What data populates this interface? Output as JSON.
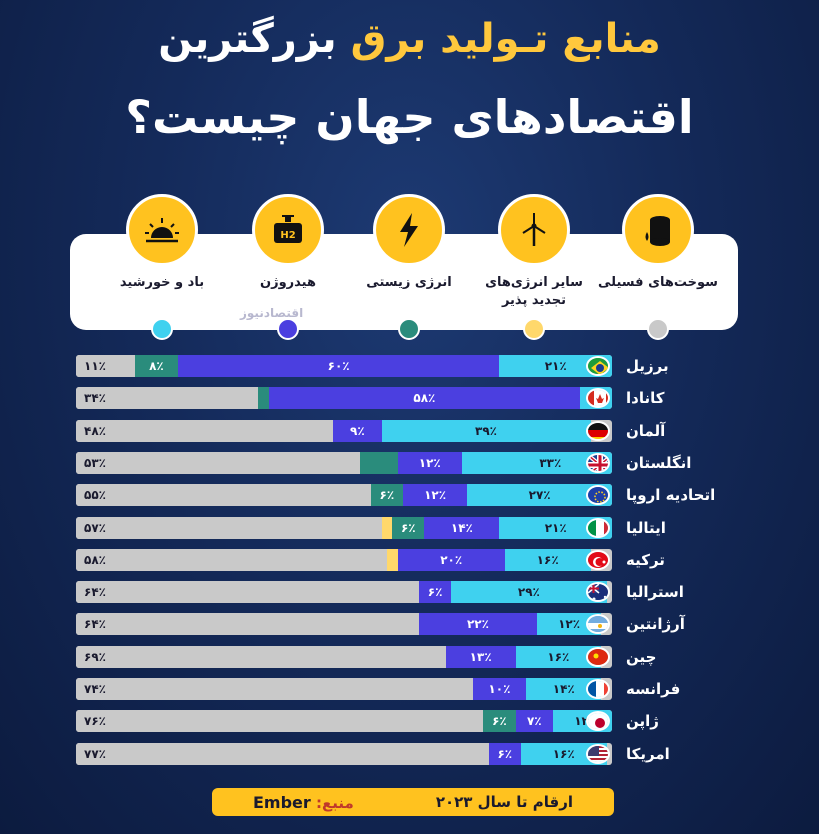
{
  "header": {
    "title_line1_a": "منابع تـولید برق",
    "title_line1_b": "بزرگترین",
    "title_line2": "اقتصادهای جهان چیست؟"
  },
  "legend": [
    {
      "label": "سوخت‌های فسیلی",
      "icon": "oil-barrel-icon",
      "color": "#c9c9c9"
    },
    {
      "label": "سایر انرژی‌های تجدید پذیر",
      "icon": "wind-turbine-icon",
      "color": "#ffd86b"
    },
    {
      "label": "انرژی زیستی",
      "icon": "lightning-icon",
      "color": "#2a8c7c"
    },
    {
      "label": "هیدروژن",
      "icon": "hydrogen-tank-icon",
      "color": "#4b3fe0"
    },
    {
      "label": "باد و خورشید",
      "icon": "sun-icon",
      "color": "#3fd1ef"
    }
  ],
  "watermark": "اقتصادنیوز",
  "chart_data": {
    "type": "bar",
    "orientation": "horizontal-stacked",
    "unit": "%",
    "categories": [
      "برزیل",
      "کانادا",
      "آلمان",
      "انگلستان",
      "اتحادیه اروپا",
      "ایتالیا",
      "ترکیه",
      "استرالیا",
      "آرژانتین",
      "چین",
      "فرانسه",
      "ژاپن",
      "امریکا"
    ],
    "flags": [
      "brazil",
      "canada",
      "germany",
      "uk",
      "eu",
      "italy",
      "turkey",
      "australia",
      "argentina",
      "china",
      "france",
      "japan",
      "usa"
    ],
    "series": [
      {
        "name": "سوخت‌های فسیلی",
        "color": "#c9c9c9",
        "values": [
          11,
          34,
          48,
          53,
          55,
          57,
          58,
          64,
          64,
          69,
          74,
          76,
          77
        ],
        "labels": [
          "۱۱٪",
          "۳۴٪",
          "۴۸٪",
          "۵۳٪",
          "۵۵٪",
          "۵۷٪",
          "۵۸٪",
          "۶۴٪",
          "۶۴٪",
          "۶۹٪",
          "۷۴٪",
          "۷۶٪",
          "۷۷٪"
        ]
      },
      {
        "name": "سایر انرژی‌های تجدید پذیر",
        "color": "#ffd86b",
        "values": [
          0,
          0,
          0,
          0,
          0,
          2,
          2,
          0,
          0,
          0,
          0,
          0,
          0
        ],
        "labels": [
          "",
          "",
          "",
          "",
          "",
          "",
          "",
          "",
          "",
          "",
          "",
          "",
          ""
        ]
      },
      {
        "name": "انرژی زیستی",
        "color": "#2a8c7c",
        "values": [
          8,
          2,
          0,
          7,
          6,
          6,
          0,
          0,
          0,
          0,
          0,
          6,
          0
        ],
        "labels": [
          "۸٪",
          "",
          "",
          "",
          "۶٪",
          "۶٪",
          "",
          "",
          "",
          "",
          "",
          "۶٪",
          ""
        ]
      },
      {
        "name": "هیدروژن",
        "color": "#4b3fe0",
        "values": [
          60,
          58,
          9,
          12,
          12,
          14,
          20,
          6,
          22,
          13,
          10,
          7,
          6
        ],
        "labels": [
          "۶۰٪",
          "۵۸٪",
          "۹٪",
          "۱۲٪",
          "۱۲٪",
          "۱۴٪",
          "۲۰٪",
          "۶٪",
          "۲۲٪",
          "۱۳٪",
          "۱۰٪",
          "۷٪",
          "۶٪"
        ]
      },
      {
        "name": "باد و خورشید",
        "color": "#3fd1ef",
        "values": [
          21,
          6,
          39,
          33,
          27,
          21,
          16,
          29,
          12,
          16,
          14,
          12,
          16
        ],
        "labels": [
          "۲۱٪",
          "",
          "۳۹٪",
          "۳۳٪",
          "۲۷٪",
          "۲۱٪",
          "۱۶٪",
          "۲۹٪",
          "۱۲٪",
          "۱۶٪",
          "۱۴٪",
          "۱۲٪",
          "۱۶٪"
        ]
      }
    ]
  },
  "footer": {
    "period": "ارقام تا سال ۲۰۲۳",
    "source_label": "منبع:",
    "source_value": "Ember"
  }
}
